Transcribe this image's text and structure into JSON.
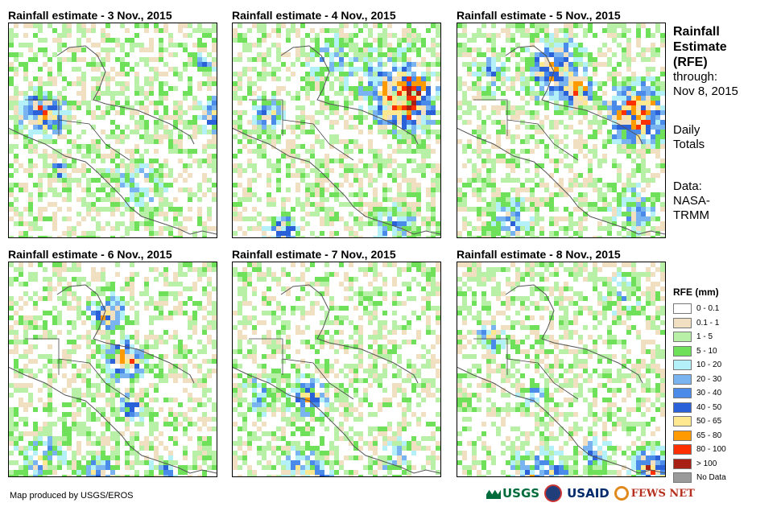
{
  "panels": [
    {
      "title": "Rainfall estimate - 3 Nov., 2015",
      "seed": 3
    },
    {
      "title": "Rainfall estimate - 4 Nov., 2015",
      "seed": 4
    },
    {
      "title": "Rainfall estimate - 5 Nov., 2015",
      "seed": 5
    },
    {
      "title": "Rainfall estimate - 6 Nov., 2015",
      "seed": 6
    },
    {
      "title": "Rainfall estimate - 7 Nov., 2015",
      "seed": 7
    },
    {
      "title": "Rainfall estimate - 8 Nov., 2015",
      "seed": 8
    }
  ],
  "side": {
    "title_line1": "Rainfall",
    "title_line2": "Estimate",
    "title_line3": "(RFE)",
    "through_line1": "through:",
    "through_line2": "Nov 8, 2015",
    "daily_line1": "Daily",
    "daily_line2": "Totals",
    "data_line1": "Data:",
    "data_line2": "NASA-",
    "data_line3": "TRMM"
  },
  "legend": {
    "title": "RFE (mm)",
    "items": [
      {
        "label": "0 - 0.1",
        "color": "#ffffff"
      },
      {
        "label": "0.1 - 1",
        "color": "#f0dfc0"
      },
      {
        "label": "1 - 5",
        "color": "#b8f0a8"
      },
      {
        "label": "5 - 10",
        "color": "#6ee05a"
      },
      {
        "label": "10 - 20",
        "color": "#b4f0f8"
      },
      {
        "label": "20 - 30",
        "color": "#7ab4f0"
      },
      {
        "label": "30 - 40",
        "color": "#4a8ae8"
      },
      {
        "label": "40 - 50",
        "color": "#2a60d8"
      },
      {
        "label": "50 - 65",
        "color": "#ffe890"
      },
      {
        "label": "65 - 80",
        "color": "#ff9a00"
      },
      {
        "label": "80 - 100",
        "color": "#ff3000"
      },
      {
        "label": "> 100",
        "color": "#a82014"
      },
      {
        "label": "No Data",
        "color": "#9a9a9a"
      }
    ]
  },
  "credit": "Map produced by USGS/EROS",
  "logos": {
    "usgs": "USGS",
    "usaid": "USAID",
    "fews": "FEWS NET"
  }
}
